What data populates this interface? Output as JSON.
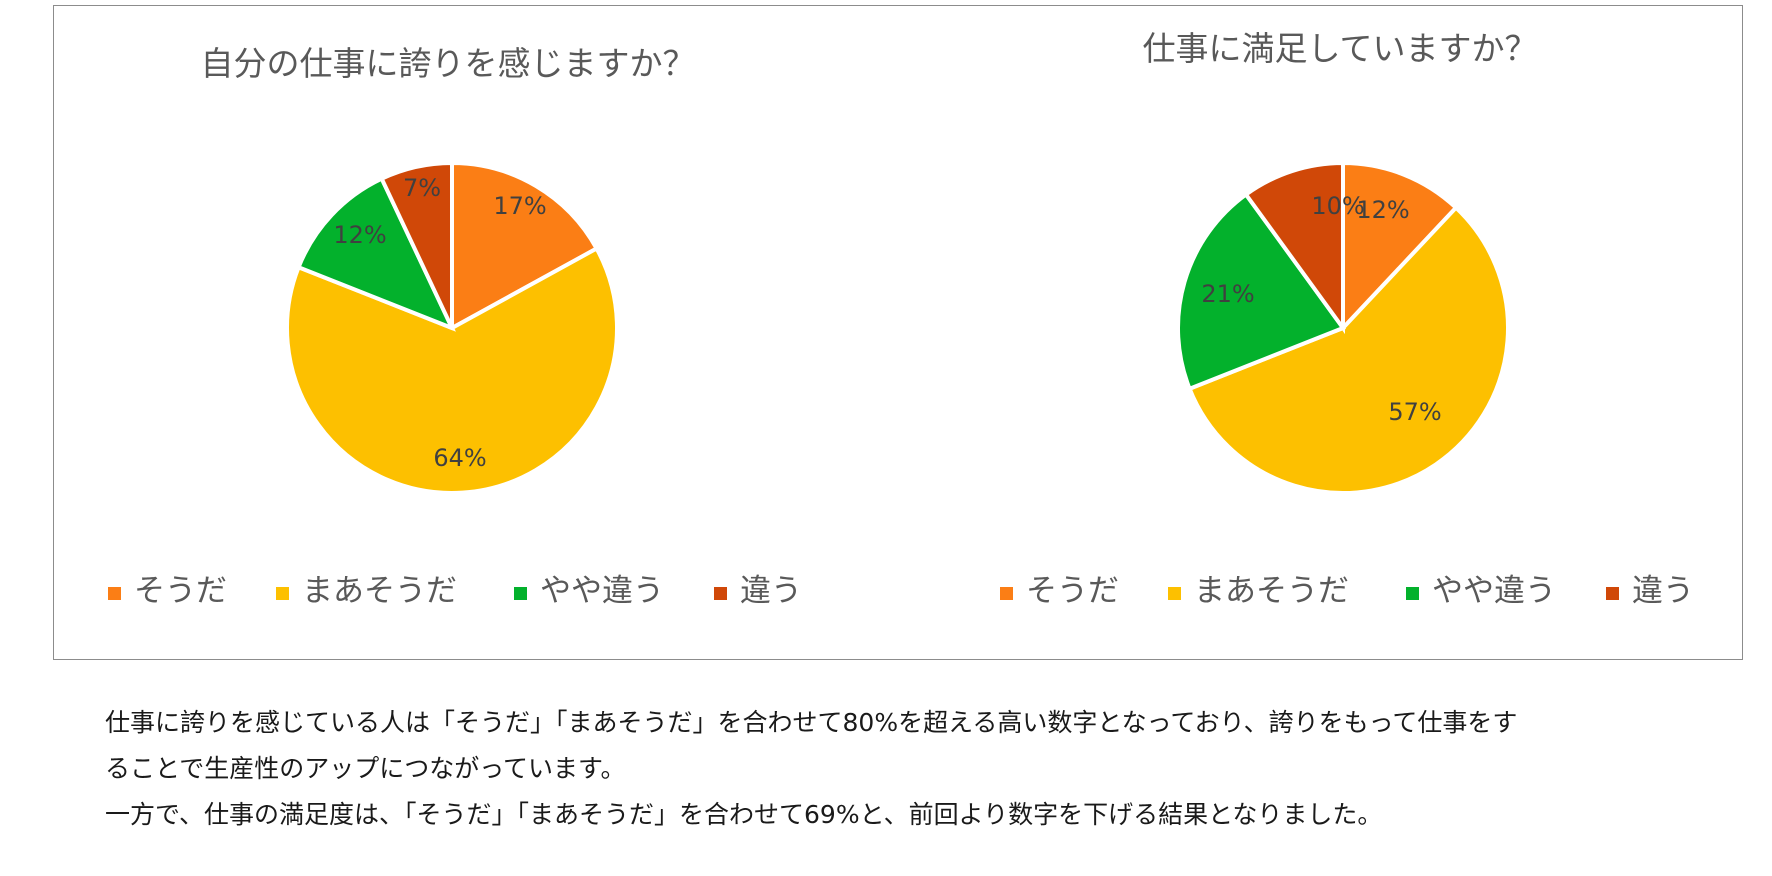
{
  "colors": {
    "sou_da": "#fb7e15",
    "maa_sou_da": "#fdc000",
    "yaya_chigau": "#03b12c",
    "chigau": "#d04808"
  },
  "chart_data": [
    {
      "type": "pie",
      "title": "自分の仕事に誇りを感じますか？",
      "categories": [
        "そうだ",
        "まあそうだ",
        "やや違う",
        "違う"
      ],
      "values": [
        17,
        64,
        12,
        7
      ],
      "labels": [
        "17%",
        "64%",
        "12%",
        "7%"
      ],
      "legend": "bottom"
    },
    {
      "type": "pie",
      "title": "仕事に満足していますか？",
      "categories": [
        "そうだ",
        "まあそうだ",
        "やや違う",
        "違う"
      ],
      "values": [
        12,
        57,
        21,
        10
      ],
      "labels": [
        "12%",
        "57%",
        "21%",
        "10%"
      ],
      "legend": "bottom"
    }
  ],
  "caption": {
    "line1": "仕事に誇りを感じている人は「そうだ」「まあそうだ」を合わせて80%を超える高い数字となっており、誇りをもって仕事をす",
    "line2": "ることで生産性のアップにつながっています。",
    "line3": "一方で、仕事の満足度は、「そうだ」「まあそうだ」を合わせて69%と、前回より数字を下げる結果となりました。"
  }
}
